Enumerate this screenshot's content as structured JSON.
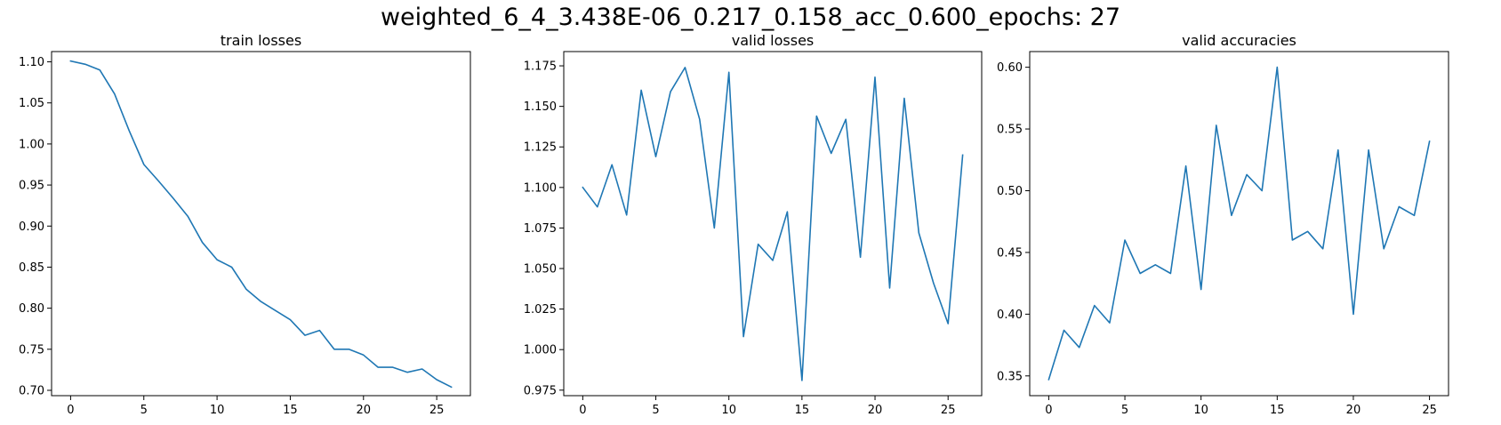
{
  "suptitle": "weighted_6_4_3.438E-06_0.217_0.158_acc_0.600_epochs: 27",
  "line_color": "#1f77b4",
  "chart_data": [
    {
      "type": "line",
      "title": "train losses",
      "xlim": [
        -1.3,
        27.3
      ],
      "ylim": [
        0.6935,
        1.1125
      ],
      "xticks": [
        0,
        5,
        10,
        15,
        20,
        25
      ],
      "yticks": [
        "0.70",
        "0.75",
        "0.80",
        "0.85",
        "0.90",
        "0.95",
        "1.00",
        "1.05",
        "1.10"
      ],
      "x": [
        0,
        1,
        2,
        3,
        4,
        5,
        6,
        7,
        8,
        9,
        10,
        11,
        12,
        13,
        14,
        15,
        16,
        17,
        18,
        19,
        20,
        21,
        22,
        23,
        24,
        25,
        26
      ],
      "series": [
        {
          "values": [
            1.101,
            1.097,
            1.09,
            1.061,
            1.016,
            0.975,
            0.955,
            0.934,
            0.912,
            0.88,
            0.859,
            0.85,
            0.823,
            0.808,
            0.797,
            0.786,
            0.767,
            0.773,
            0.75,
            0.75,
            0.743,
            0.728,
            0.728,
            0.722,
            0.726,
            0.713,
            0.704
          ]
        }
      ]
    },
    {
      "type": "line",
      "title": "valid losses",
      "xlim": [
        -1.3,
        27.3
      ],
      "ylim": [
        0.9716,
        1.1838
      ],
      "xticks": [
        0,
        5,
        10,
        15,
        20,
        25
      ],
      "yticks": [
        "0.975",
        "1.000",
        "1.025",
        "1.050",
        "1.075",
        "1.100",
        "1.125",
        "1.150",
        "1.175"
      ],
      "x": [
        0,
        1,
        2,
        3,
        4,
        5,
        6,
        7,
        8,
        9,
        10,
        11,
        12,
        13,
        14,
        15,
        16,
        17,
        18,
        19,
        20,
        21,
        22,
        23,
        24,
        25,
        26
      ],
      "series": [
        {
          "values": [
            1.1,
            1.088,
            1.114,
            1.083,
            1.16,
            1.119,
            1.159,
            1.174,
            1.142,
            1.075,
            1.171,
            1.008,
            1.065,
            1.055,
            1.085,
            0.981,
            1.144,
            1.121,
            1.142,
            1.057,
            1.168,
            1.038,
            1.155,
            1.072,
            1.041,
            1.016,
            1.12
          ]
        }
      ]
    },
    {
      "type": "line",
      "title": "valid accuracies",
      "xlim": [
        -1.25,
        26.25
      ],
      "ylim": [
        0.334,
        0.6127
      ],
      "xticks": [
        0,
        5,
        10,
        15,
        20,
        25
      ],
      "yticks": [
        "0.35",
        "0.40",
        "0.45",
        "0.50",
        "0.55",
        "0.60"
      ],
      "x": [
        0,
        1,
        2,
        3,
        4,
        5,
        6,
        7,
        8,
        9,
        10,
        11,
        12,
        13,
        14,
        15,
        16,
        17,
        18,
        19,
        20,
        21,
        22,
        23,
        24,
        25
      ],
      "series": [
        {
          "values": [
            0.347,
            0.387,
            0.373,
            0.407,
            0.393,
            0.46,
            0.433,
            0.44,
            0.433,
            0.52,
            0.42,
            0.553,
            0.48,
            0.513,
            0.5,
            0.6,
            0.46,
            0.467,
            0.453,
            0.533,
            0.4,
            0.533,
            0.453,
            0.487,
            0.48,
            0.54
          ]
        }
      ]
    }
  ]
}
